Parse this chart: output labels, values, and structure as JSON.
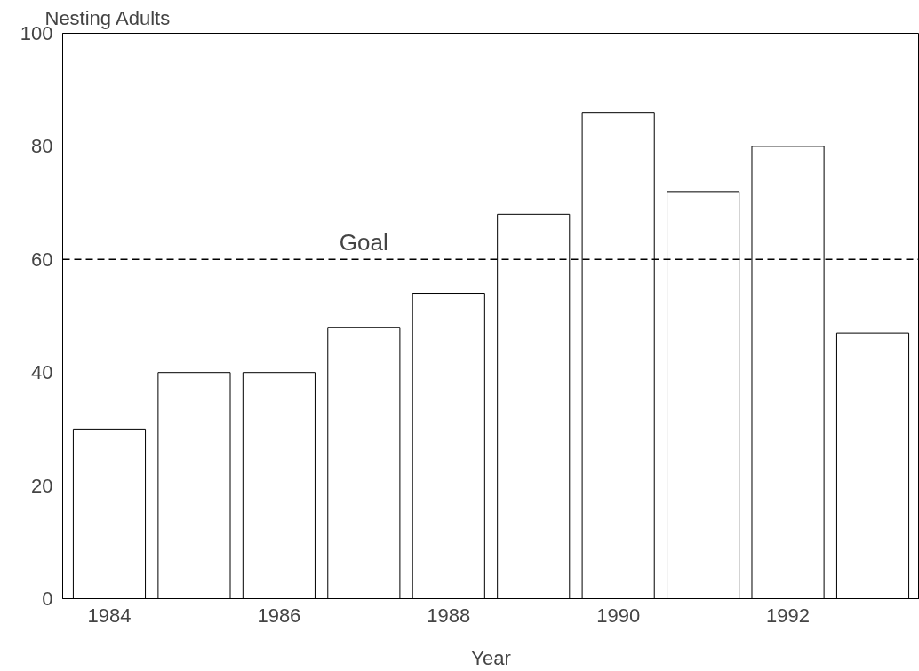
{
  "chart_data": {
    "type": "bar",
    "ylabel": "Nesting Adults",
    "xlabel": "Year",
    "categories": [
      "1984",
      null,
      "1986",
      null,
      "1988",
      null,
      "1990",
      null,
      "1992",
      null
    ],
    "values": [
      30,
      40,
      40,
      48,
      54,
      68,
      86,
      72,
      80,
      47
    ],
    "color": "#ffffff",
    "ylim": [
      0,
      100
    ],
    "yticks": [
      0,
      20,
      40,
      60,
      80,
      100
    ],
    "grid": false,
    "ref_lines": [
      {
        "axis": "y",
        "value": 60,
        "label": "Goal",
        "line_style": "dashed"
      }
    ]
  }
}
